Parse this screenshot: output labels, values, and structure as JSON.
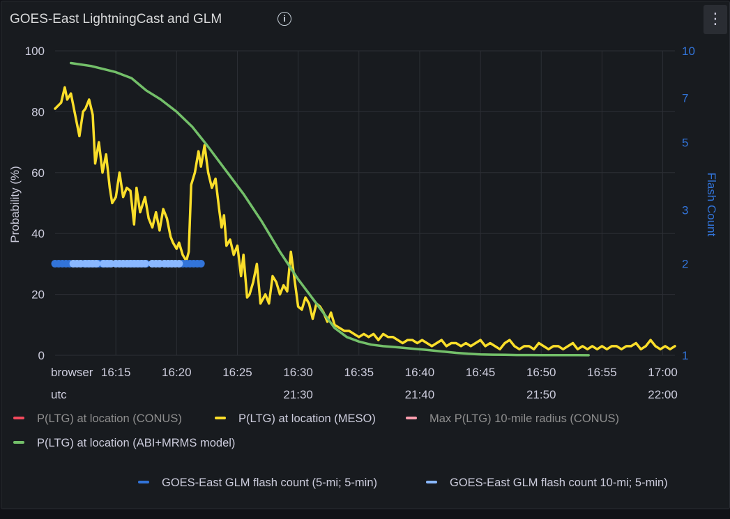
{
  "panel": {
    "title": "GOES-East LightningCast and GLM",
    "info_icon": "info-icon",
    "menu_icon": "kebab-menu-icon",
    "menu_glyph": "⋮"
  },
  "colors": {
    "conus": "#f2495c",
    "meso": "#fade2a",
    "max_conus": "#ff9eaf",
    "abi_model": "#73bf69",
    "glm5": "#3274d9",
    "glm10": "#8ab8ff",
    "left_axis_text": "#ccccdc",
    "right_axis_text": "#3274d9",
    "grid": "#2c2f35"
  },
  "chart_data": {
    "type": "line",
    "x_rows": [
      {
        "label": "browser",
        "ticks": [
          "16:15",
          "16:20",
          "16:25",
          "16:30",
          "16:35",
          "16:40",
          "16:45",
          "16:50",
          "16:55",
          "17:00"
        ]
      },
      {
        "label": "utc",
        "ticks": [
          "21:30",
          "21:40",
          "21:50",
          "22:00"
        ]
      }
    ],
    "xlim": [
      "16:10",
      "17:01"
    ],
    "y_left": {
      "label": "Probability (%)",
      "ticks": [
        0,
        20,
        40,
        60,
        80,
        100
      ],
      "ylim": [
        0,
        100
      ]
    },
    "y_right": {
      "label": "Flash Count",
      "scale": "log",
      "ticks": [
        1,
        2,
        3,
        5,
        7,
        10
      ],
      "ylim": [
        1,
        10
      ]
    },
    "legend": [
      {
        "name": "P(LTG) at location (CONUS)",
        "color_key": "conus",
        "hidden": true
      },
      {
        "name": "P(LTG) at location (MESO)",
        "color_key": "meso",
        "hidden": false
      },
      {
        "name": "Max P(LTG) 10-mile radius (CONUS)",
        "color_key": "max_conus",
        "hidden": true
      },
      {
        "name": "P(LTG) at location (ABI+MRMS model)",
        "color_key": "abi_model",
        "hidden": false
      },
      {
        "name": "GOES-East GLM flash count (5-mi; 5-min)",
        "color_key": "glm5",
        "hidden": false
      },
      {
        "name": "GOES-East GLM flash count 10-mi; 5-min)",
        "color_key": "glm10",
        "hidden": false
      }
    ],
    "series": [
      {
        "name": "P(LTG) at location (MESO)",
        "axis": "left",
        "type": "line",
        "x": [
          10.0,
          10.5,
          10.8,
          11.0,
          11.3,
          11.6,
          12.0,
          12.3,
          12.5,
          12.8,
          13.1,
          13.3,
          13.6,
          13.9,
          14.2,
          14.5,
          14.7,
          15.0,
          15.3,
          15.6,
          15.9,
          16.2,
          16.5,
          16.7,
          17.0,
          17.4,
          17.7,
          18.0,
          18.3,
          18.6,
          18.9,
          19.2,
          19.5,
          19.7,
          20.0,
          20.2,
          20.5,
          20.8,
          21.0,
          21.2,
          21.5,
          21.8,
          22.0,
          22.3,
          22.6,
          22.9,
          23.2,
          23.5,
          23.7,
          23.9,
          24.1,
          24.4,
          24.7,
          25.0,
          25.3,
          25.5,
          25.8,
          26.0,
          26.3,
          26.6,
          26.9,
          27.3,
          27.6,
          27.9,
          28.2,
          28.5,
          28.8,
          29.1,
          29.4,
          29.7,
          30.0,
          30.3,
          30.6,
          30.9,
          31.2,
          31.5,
          31.8,
          32.1,
          32.4,
          32.7,
          33.0,
          33.4,
          33.8,
          34.2,
          34.6,
          35.0,
          35.4,
          35.8,
          36.2,
          36.6,
          37.0,
          37.4,
          37.8,
          38.2,
          38.6,
          39.0,
          39.4,
          39.8,
          40.2,
          40.6,
          41.0,
          41.4,
          41.8,
          42.2,
          42.6,
          43.0,
          43.4,
          43.8,
          44.2,
          44.6,
          45.0,
          45.4,
          45.8,
          46.2,
          46.6,
          47.0,
          47.4,
          47.8,
          48.2,
          48.6,
          49.0,
          49.4,
          49.8,
          50.2,
          50.6,
          51.0,
          51.4,
          51.8,
          52.2,
          52.6,
          53.0,
          53.4,
          53.8,
          54.2,
          54.6,
          55.0,
          55.4,
          55.8,
          56.2,
          56.6,
          57.0,
          57.4,
          57.8,
          58.2,
          58.6,
          59.0,
          59.4,
          59.8,
          60.2,
          60.6,
          61.0
        ],
        "y": [
          81,
          83,
          88,
          84,
          86,
          80,
          72,
          80,
          81,
          84,
          79,
          63,
          70,
          60,
          66,
          55,
          50,
          52,
          60,
          52,
          55,
          54,
          43,
          55,
          47,
          52,
          45,
          42,
          47,
          41,
          48,
          45,
          39,
          37,
          35,
          37,
          33,
          31,
          34,
          56,
          60,
          67,
          62,
          69,
          60,
          55,
          58,
          48,
          42,
          46,
          36,
          38,
          33,
          36,
          26,
          33,
          19,
          20,
          24,
          30,
          17,
          20,
          17,
          26,
          24,
          20,
          23,
          21,
          34,
          25,
          16,
          15,
          19,
          17,
          12,
          17,
          16,
          14,
          11,
          14,
          10,
          9,
          8,
          8,
          7,
          6,
          7,
          6,
          7,
          5,
          7,
          6,
          6,
          5,
          4,
          5,
          5,
          4,
          5,
          4,
          3,
          4,
          5,
          3,
          4,
          4,
          3,
          4,
          3,
          4,
          5,
          3,
          4,
          3,
          2,
          4,
          5,
          3,
          2,
          3,
          3,
          2,
          4,
          3,
          2,
          3,
          3,
          2,
          3,
          4,
          2,
          3,
          2,
          3,
          2,
          3,
          2,
          3,
          3,
          2,
          3,
          3,
          4,
          2,
          3,
          5,
          3,
          2,
          3,
          2,
          3
        ]
      },
      {
        "name": "P(LTG) at location (ABI+MRMS model)",
        "axis": "left",
        "type": "line",
        "x": [
          11.3,
          13.0,
          14.0,
          15.0,
          16.3,
          17.5,
          18.7,
          20.0,
          21.3,
          22.5,
          24.0,
          25.5,
          27.0,
          28.5,
          30.0,
          31.5,
          33.0,
          34.0,
          35.0,
          36.0,
          37.0,
          38.0,
          39.0,
          40.5,
          42.0,
          43.0,
          44.0,
          45.0,
          46.0,
          47.0,
          48.0,
          49.0,
          50.0,
          51.0,
          52.0,
          53.0,
          53.9
        ],
        "y": [
          96,
          95,
          94,
          93,
          91,
          87,
          84,
          80,
          75,
          69,
          61,
          53,
          44,
          34,
          25,
          17,
          9,
          6,
          4.5,
          3.5,
          3,
          2.7,
          2.3,
          1.8,
          1.2,
          0.8,
          0.5,
          0.3,
          0.2,
          0.15,
          0.1,
          0.1,
          0.08,
          0.06,
          0.05,
          0.04,
          0.03
        ]
      },
      {
        "name": "GOES-East GLM flash count (5-mi; 5-min)",
        "axis": "right",
        "type": "points",
        "x": [
          10.0,
          10.3,
          10.6,
          10.9,
          11.2,
          11.5,
          11.8,
          12.1,
          12.4,
          12.7,
          13.0,
          13.3,
          13.6,
          13.9,
          14.2,
          14.5,
          15.0,
          15.3,
          15.6,
          16.0,
          16.3,
          16.6,
          16.9,
          17.2,
          17.5,
          18.0,
          18.3,
          18.6,
          19.0,
          19.3,
          19.6,
          19.9,
          20.2,
          20.5,
          20.8,
          21.1,
          21.4,
          21.7,
          22.0
        ],
        "y": [
          2,
          2,
          2,
          2,
          2,
          2,
          2,
          2,
          2,
          2,
          2,
          2,
          2,
          2,
          2,
          2,
          2,
          2,
          2,
          2,
          2,
          2,
          2,
          2,
          2,
          2,
          2,
          2,
          2,
          2,
          2,
          2,
          2,
          2,
          2,
          2,
          2,
          2,
          2
        ]
      },
      {
        "name": "GOES-East GLM flash count 10-mi; 5-min)",
        "axis": "right",
        "type": "points",
        "x": [
          11.5,
          11.8,
          12.1,
          12.5,
          12.8,
          13.1,
          13.4,
          14.0,
          14.3,
          14.6,
          15.0,
          15.3,
          15.6,
          15.9,
          16.2,
          16.5,
          16.8,
          17.1,
          17.4,
          18.0,
          18.3,
          18.6,
          19.0,
          19.3,
          19.6,
          19.9,
          20.2
        ],
        "y": [
          2,
          2,
          2,
          2,
          2,
          2,
          2,
          2,
          2,
          2,
          2,
          2,
          2,
          2,
          2,
          2,
          2,
          2,
          2,
          2,
          2,
          2,
          2,
          2,
          2,
          2,
          2
        ]
      }
    ]
  }
}
